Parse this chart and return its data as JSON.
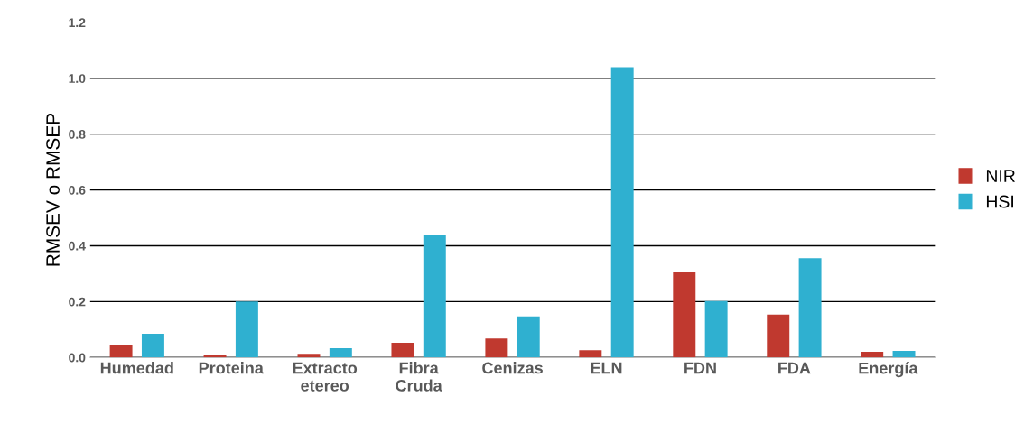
{
  "chart_data": {
    "type": "bar",
    "ylabel": "RMSEV o RMSEP",
    "categories": [
      "Humedad",
      "Proteina",
      "Extracto\netereo",
      "Fibra\nCruda",
      "Cenizas",
      "ELN",
      "FDN",
      "FDA",
      "Energía"
    ],
    "series": [
      {
        "name": "NIR",
        "color": "#c0392f",
        "values": [
          0.046,
          0.01,
          0.013,
          0.052,
          0.068,
          0.026,
          0.306,
          0.153,
          0.02
        ]
      },
      {
        "name": "HSI",
        "color": "#2fb0d0",
        "values": [
          0.085,
          0.2,
          0.033,
          0.437,
          0.147,
          1.04,
          0.202,
          0.355,
          0.023
        ]
      }
    ],
    "ylim": [
      0,
      1.2
    ],
    "yticks": [
      {
        "value": 0,
        "label": "0.0"
      },
      {
        "value": 0.2,
        "label": "0.2"
      },
      {
        "value": 0.4,
        "label": "0.4"
      },
      {
        "value": 0.6,
        "label": "0.6"
      },
      {
        "value": 0.8,
        "label": "0.8"
      },
      {
        "value": 1.0,
        "label": "1.0"
      },
      {
        "value": 1.2,
        "label": "1.2"
      }
    ],
    "grid": "y",
    "legend": "right"
  }
}
